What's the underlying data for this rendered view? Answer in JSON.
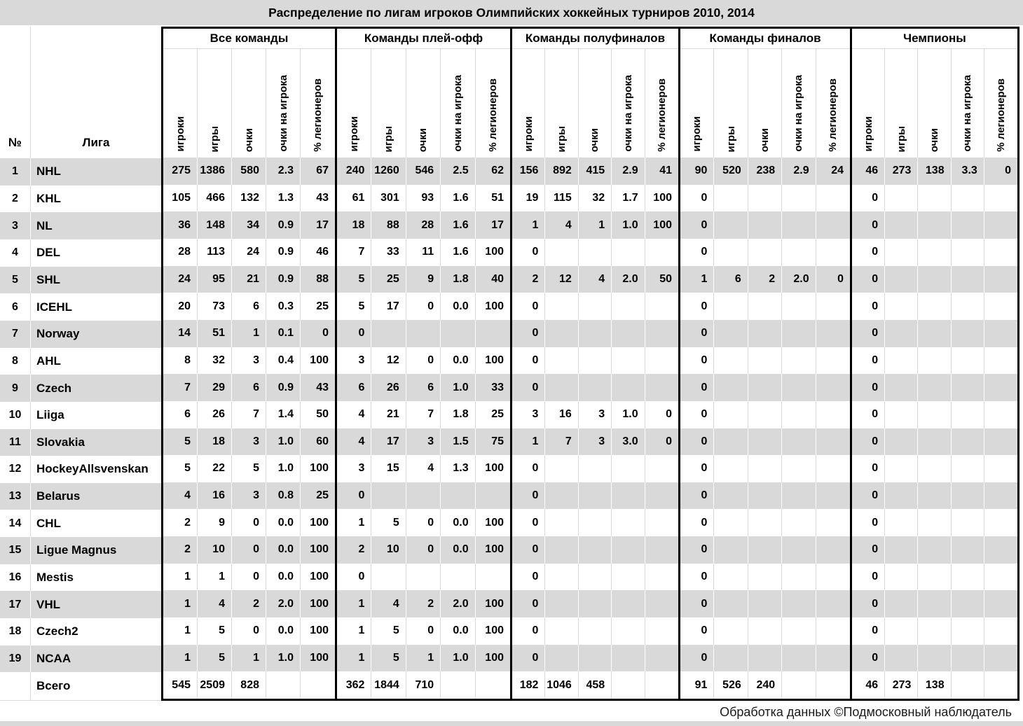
{
  "title": "Распределение по лигам игроков Олимпийских хоккейных турниров 2010, 2014",
  "footer": "Обработка данных ©Подмосковный наблюдатель",
  "colors": {
    "stripe": "#d9d9d9",
    "border": "#000000",
    "background": "#ffffff",
    "footer_text": "#1a1a1a"
  },
  "chart_data": {
    "type": "table",
    "title": "Распределение по лигам игроков Олимпийских хоккейных турниров 2010, 2014",
    "num_header": "№",
    "league_header": "Лига",
    "groups": [
      "Все команды",
      "Команды плей-офф",
      "Команды полуфиналов",
      "Команды финалов",
      "Чемпионы"
    ],
    "stat_headers": [
      "игроки",
      "игры",
      "очки",
      "очки на игрока",
      "% легионеров"
    ],
    "total_label": "Всего",
    "rows": [
      {
        "num": "1",
        "league": "NHL",
        "cells": [
          [
            "275",
            "1386",
            "580",
            "2.3",
            "67"
          ],
          [
            "240",
            "1260",
            "546",
            "2.5",
            "62"
          ],
          [
            "156",
            "892",
            "415",
            "2.9",
            "41"
          ],
          [
            "90",
            "520",
            "238",
            "2.9",
            "24"
          ],
          [
            "46",
            "273",
            "138",
            "3.3",
            "0"
          ]
        ]
      },
      {
        "num": "2",
        "league": "KHL",
        "cells": [
          [
            "105",
            "466",
            "132",
            "1.3",
            "43"
          ],
          [
            "61",
            "301",
            "93",
            "1.6",
            "51"
          ],
          [
            "19",
            "115",
            "32",
            "1.7",
            "100"
          ],
          [
            "0",
            "",
            "",
            "",
            ""
          ],
          [
            "0",
            "",
            "",
            "",
            ""
          ]
        ]
      },
      {
        "num": "3",
        "league": "NL",
        "cells": [
          [
            "36",
            "148",
            "34",
            "0.9",
            "17"
          ],
          [
            "18",
            "88",
            "28",
            "1.6",
            "17"
          ],
          [
            "1",
            "4",
            "1",
            "1.0",
            "100"
          ],
          [
            "0",
            "",
            "",
            "",
            ""
          ],
          [
            "0",
            "",
            "",
            "",
            ""
          ]
        ]
      },
      {
        "num": "4",
        "league": "DEL",
        "cells": [
          [
            "28",
            "113",
            "24",
            "0.9",
            "46"
          ],
          [
            "7",
            "33",
            "11",
            "1.6",
            "100"
          ],
          [
            "0",
            "",
            "",
            "",
            ""
          ],
          [
            "0",
            "",
            "",
            "",
            ""
          ],
          [
            "0",
            "",
            "",
            "",
            ""
          ]
        ]
      },
      {
        "num": "5",
        "league": "SHL",
        "cells": [
          [
            "24",
            "95",
            "21",
            "0.9",
            "88"
          ],
          [
            "5",
            "25",
            "9",
            "1.8",
            "40"
          ],
          [
            "2",
            "12",
            "4",
            "2.0",
            "50"
          ],
          [
            "1",
            "6",
            "2",
            "2.0",
            "0"
          ],
          [
            "0",
            "",
            "",
            "",
            ""
          ]
        ]
      },
      {
        "num": "6",
        "league": "ICEHL",
        "cells": [
          [
            "20",
            "73",
            "6",
            "0.3",
            "25"
          ],
          [
            "5",
            "17",
            "0",
            "0.0",
            "100"
          ],
          [
            "0",
            "",
            "",
            "",
            ""
          ],
          [
            "0",
            "",
            "",
            "",
            ""
          ],
          [
            "0",
            "",
            "",
            "",
            ""
          ]
        ]
      },
      {
        "num": "7",
        "league": "Norway",
        "cells": [
          [
            "14",
            "51",
            "1",
            "0.1",
            "0"
          ],
          [
            "0",
            "",
            "",
            "",
            ""
          ],
          [
            "0",
            "",
            "",
            "",
            ""
          ],
          [
            "0",
            "",
            "",
            "",
            ""
          ],
          [
            "0",
            "",
            "",
            "",
            ""
          ]
        ]
      },
      {
        "num": "8",
        "league": "AHL",
        "cells": [
          [
            "8",
            "32",
            "3",
            "0.4",
            "100"
          ],
          [
            "3",
            "12",
            "0",
            "0.0",
            "100"
          ],
          [
            "0",
            "",
            "",
            "",
            ""
          ],
          [
            "0",
            "",
            "",
            "",
            ""
          ],
          [
            "0",
            "",
            "",
            "",
            ""
          ]
        ]
      },
      {
        "num": "9",
        "league": "Czech",
        "cells": [
          [
            "7",
            "29",
            "6",
            "0.9",
            "43"
          ],
          [
            "6",
            "26",
            "6",
            "1.0",
            "33"
          ],
          [
            "0",
            "",
            "",
            "",
            ""
          ],
          [
            "0",
            "",
            "",
            "",
            ""
          ],
          [
            "0",
            "",
            "",
            "",
            ""
          ]
        ]
      },
      {
        "num": "10",
        "league": "Liiga",
        "cells": [
          [
            "6",
            "26",
            "7",
            "1.4",
            "50"
          ],
          [
            "4",
            "21",
            "7",
            "1.8",
            "25"
          ],
          [
            "3",
            "16",
            "3",
            "1.0",
            "0"
          ],
          [
            "0",
            "",
            "",
            "",
            ""
          ],
          [
            "0",
            "",
            "",
            "",
            ""
          ]
        ]
      },
      {
        "num": "11",
        "league": "Slovakia",
        "cells": [
          [
            "5",
            "18",
            "3",
            "1.0",
            "60"
          ],
          [
            "4",
            "17",
            "3",
            "1.5",
            "75"
          ],
          [
            "1",
            "7",
            "3",
            "3.0",
            "0"
          ],
          [
            "0",
            "",
            "",
            "",
            ""
          ],
          [
            "0",
            "",
            "",
            "",
            ""
          ]
        ]
      },
      {
        "num": "12",
        "league": "HockeyAllsvenskan",
        "cells": [
          [
            "5",
            "22",
            "5",
            "1.0",
            "100"
          ],
          [
            "3",
            "15",
            "4",
            "1.3",
            "100"
          ],
          [
            "0",
            "",
            "",
            "",
            ""
          ],
          [
            "0",
            "",
            "",
            "",
            ""
          ],
          [
            "0",
            "",
            "",
            "",
            ""
          ]
        ]
      },
      {
        "num": "13",
        "league": "Belarus",
        "cells": [
          [
            "4",
            "16",
            "3",
            "0.8",
            "25"
          ],
          [
            "0",
            "",
            "",
            "",
            ""
          ],
          [
            "0",
            "",
            "",
            "",
            ""
          ],
          [
            "0",
            "",
            "",
            "",
            ""
          ],
          [
            "0",
            "",
            "",
            "",
            ""
          ]
        ]
      },
      {
        "num": "14",
        "league": "CHL",
        "cells": [
          [
            "2",
            "9",
            "0",
            "0.0",
            "100"
          ],
          [
            "1",
            "5",
            "0",
            "0.0",
            "100"
          ],
          [
            "0",
            "",
            "",
            "",
            ""
          ],
          [
            "0",
            "",
            "",
            "",
            ""
          ],
          [
            "0",
            "",
            "",
            "",
            ""
          ]
        ]
      },
      {
        "num": "15",
        "league": "Ligue Magnus",
        "cells": [
          [
            "2",
            "10",
            "0",
            "0.0",
            "100"
          ],
          [
            "2",
            "10",
            "0",
            "0.0",
            "100"
          ],
          [
            "0",
            "",
            "",
            "",
            ""
          ],
          [
            "0",
            "",
            "",
            "",
            ""
          ],
          [
            "0",
            "",
            "",
            "",
            ""
          ]
        ]
      },
      {
        "num": "16",
        "league": "Mestis",
        "cells": [
          [
            "1",
            "1",
            "0",
            "0.0",
            "100"
          ],
          [
            "0",
            "",
            "",
            "",
            ""
          ],
          [
            "0",
            "",
            "",
            "",
            ""
          ],
          [
            "0",
            "",
            "",
            "",
            ""
          ],
          [
            "0",
            "",
            "",
            "",
            ""
          ]
        ]
      },
      {
        "num": "17",
        "league": "VHL",
        "cells": [
          [
            "1",
            "4",
            "2",
            "2.0",
            "100"
          ],
          [
            "1",
            "4",
            "2",
            "2.0",
            "100"
          ],
          [
            "0",
            "",
            "",
            "",
            ""
          ],
          [
            "0",
            "",
            "",
            "",
            ""
          ],
          [
            "0",
            "",
            "",
            "",
            ""
          ]
        ]
      },
      {
        "num": "18",
        "league": "Czech2",
        "cells": [
          [
            "1",
            "5",
            "0",
            "0.0",
            "100"
          ],
          [
            "1",
            "5",
            "0",
            "0.0",
            "100"
          ],
          [
            "0",
            "",
            "",
            "",
            ""
          ],
          [
            "0",
            "",
            "",
            "",
            ""
          ],
          [
            "0",
            "",
            "",
            "",
            ""
          ]
        ]
      },
      {
        "num": "19",
        "league": "NCAA",
        "cells": [
          [
            "1",
            "5",
            "1",
            "1.0",
            "100"
          ],
          [
            "1",
            "5",
            "1",
            "1.0",
            "100"
          ],
          [
            "0",
            "",
            "",
            "",
            ""
          ],
          [
            "0",
            "",
            "",
            "",
            ""
          ],
          [
            "0",
            "",
            "",
            "",
            ""
          ]
        ]
      },
      {
        "num": "",
        "league": "Всего",
        "is_total": true,
        "cells": [
          [
            "545",
            "2509",
            "828",
            "",
            ""
          ],
          [
            "362",
            "1844",
            "710",
            "",
            ""
          ],
          [
            "182",
            "1046",
            "458",
            "",
            ""
          ],
          [
            "91",
            "526",
            "240",
            "",
            ""
          ],
          [
            "46",
            "273",
            "138",
            "",
            ""
          ]
        ]
      }
    ]
  }
}
